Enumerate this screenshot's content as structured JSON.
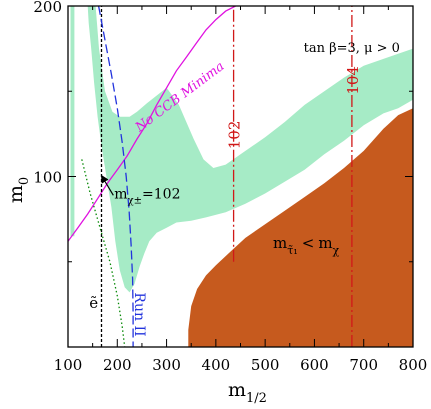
{
  "chart_data": {
    "type": "area",
    "title": "tan β=3, μ > 0",
    "xlabel": {
      "main": "m",
      "sub": "1/2"
    },
    "ylabel": {
      "main": "m",
      "sub": "0"
    },
    "xlim": [
      100,
      800
    ],
    "ylim": [
      0,
      200
    ],
    "xticks": [
      100,
      200,
      300,
      400,
      500,
      600,
      700,
      800
    ],
    "yticks": [
      100,
      200
    ],
    "grid": false,
    "colors": {
      "cosmo_region": "#a6ebc6",
      "stau_lsp_region": "#c65a1e",
      "ccb_line": "#e012e0",
      "chargino_line": "#000000",
      "selectron_line": "#0a8a0a",
      "run2_line": "#2233dd",
      "higgs_lines": "#d01818",
      "axes": "#000000"
    },
    "regions": [
      {
        "id": "cosmo_strip_left",
        "color_key": "cosmo_region",
        "points": [
          [
            105,
            200
          ],
          [
            113,
            200
          ],
          [
            113,
            65
          ],
          [
            105,
            65
          ]
        ]
      },
      {
        "id": "cosmo_main",
        "color_key": "cosmo_region",
        "points": [
          [
            140,
            200
          ],
          [
            156,
            200
          ],
          [
            163,
            175
          ],
          [
            175,
            150
          ],
          [
            190,
            138
          ],
          [
            205,
            135
          ],
          [
            225,
            135
          ],
          [
            240,
            138
          ],
          [
            260,
            143
          ],
          [
            300,
            152
          ],
          [
            325,
            142
          ],
          [
            355,
            122
          ],
          [
            375,
            110
          ],
          [
            395,
            105
          ],
          [
            420,
            107
          ],
          [
            460,
            115
          ],
          [
            500,
            123
          ],
          [
            540,
            132
          ],
          [
            580,
            142
          ],
          [
            620,
            150
          ],
          [
            660,
            158
          ],
          [
            700,
            165
          ],
          [
            740,
            169
          ],
          [
            770,
            172
          ],
          [
            800,
            175
          ],
          [
            800,
            145
          ],
          [
            770,
            140
          ],
          [
            740,
            137
          ],
          [
            700,
            130
          ],
          [
            660,
            121
          ],
          [
            620,
            113
          ],
          [
            580,
            104
          ],
          [
            540,
            97
          ],
          [
            500,
            90
          ],
          [
            460,
            84
          ],
          [
            420,
            79
          ],
          [
            380,
            76
          ],
          [
            350,
            74
          ],
          [
            320,
            73
          ],
          [
            300,
            70
          ],
          [
            280,
            67
          ],
          [
            265,
            62
          ],
          [
            255,
            55
          ],
          [
            245,
            47
          ],
          [
            235,
            37
          ],
          [
            225,
            32
          ],
          [
            215,
            35
          ],
          [
            205,
            45
          ],
          [
            196,
            62
          ],
          [
            188,
            82
          ],
          [
            178,
            100
          ],
          [
            168,
            118
          ],
          [
            160,
            135
          ],
          [
            153,
            155
          ],
          [
            147,
            175
          ],
          [
            142,
            190
          ]
        ]
      },
      {
        "id": "stau_lsp",
        "color_key": "stau_lsp_region",
        "points": [
          [
            355,
            0
          ],
          [
            800,
            0
          ],
          [
            800,
            140
          ],
          [
            770,
            136
          ],
          [
            740,
            128
          ],
          [
            700,
            115
          ],
          [
            660,
            105
          ],
          [
            620,
            96
          ],
          [
            580,
            88
          ],
          [
            540,
            80
          ],
          [
            500,
            72
          ],
          [
            460,
            64
          ],
          [
            430,
            56
          ],
          [
            400,
            48
          ],
          [
            380,
            42
          ],
          [
            362,
            34
          ],
          [
            350,
            24
          ],
          [
            344,
            10
          ],
          [
            344,
            0
          ]
        ]
      }
    ],
    "lines": [
      {
        "id": "no-ccb-minima",
        "color_key": "ccb_line",
        "dash": "",
        "points": [
          [
            100,
            62
          ],
          [
            120,
            70
          ],
          [
            140,
            78
          ],
          [
            160,
            87
          ],
          [
            180,
            96
          ],
          [
            200,
            104
          ],
          [
            220,
            112
          ],
          [
            240,
            122
          ],
          [
            260,
            131
          ],
          [
            280,
            142
          ],
          [
            300,
            152
          ],
          [
            320,
            162
          ],
          [
            340,
            170
          ],
          [
            360,
            178
          ],
          [
            380,
            186
          ],
          [
            400,
            192
          ],
          [
            420,
            197
          ],
          [
            440,
            200
          ]
        ]
      },
      {
        "id": "chargino-102",
        "color_key": "chargino_line",
        "dash": "3,2",
        "points": [
          [
            168,
            0
          ],
          [
            168,
            200
          ]
        ]
      },
      {
        "id": "selectron-limit",
        "color_key": "selectron_line",
        "dash": "1.5,2.5",
        "points": [
          [
            128,
            110
          ],
          [
            145,
            90
          ],
          [
            165,
            70
          ],
          [
            185,
            50
          ],
          [
            200,
            30
          ],
          [
            210,
            12
          ],
          [
            215,
            0
          ]
        ]
      },
      {
        "id": "run-ii",
        "color_key": "run2_line",
        "dash": "9,4",
        "points": [
          [
            162,
            200
          ],
          [
            175,
            180
          ],
          [
            188,
            160
          ],
          [
            200,
            140
          ],
          [
            210,
            120
          ],
          [
            218,
            100
          ],
          [
            224,
            80
          ],
          [
            228,
            60
          ],
          [
            231,
            40
          ],
          [
            232,
            20
          ],
          [
            232,
            0
          ]
        ]
      },
      {
        "id": "higgs-102",
        "color_key": "higgs_lines",
        "dash": "12,3,2,3",
        "points": [
          [
            436,
            50
          ],
          [
            436,
            200
          ]
        ]
      },
      {
        "id": "higgs-104",
        "color_key": "higgs_lines",
        "dash": "12,3,2,3",
        "points": [
          [
            676,
            0
          ],
          [
            676,
            200
          ]
        ]
      }
    ],
    "annotations": {
      "ccb_label": "No CCB Minima",
      "higgs_102": "102",
      "higgs_104": "104",
      "chargino_label": {
        "main": "m",
        "sub": "χ±",
        "rest": "=102"
      },
      "run2_label": "Run II",
      "selectron_label": "ẽ",
      "stau_label": {
        "m1": "m",
        "sub1": "τ̃₁",
        "lt": "<",
        "m2": "m",
        "sub2": "χ"
      }
    }
  }
}
